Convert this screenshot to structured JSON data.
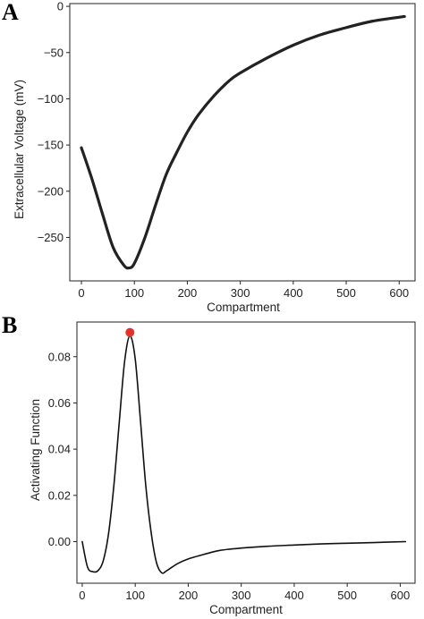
{
  "panels": [
    {
      "label": "A",
      "chart_data": {
        "type": "line",
        "title": "",
        "xlabel": "Compartment",
        "ylabel": "Extracellular Voltage (mV)",
        "xlim": [
          -22,
          630
        ],
        "ylim": [
          -297,
          3
        ],
        "xticks": [
          0,
          100,
          200,
          300,
          400,
          500,
          600
        ],
        "yticks": [
          0,
          -50,
          -100,
          -150,
          -200,
          -250
        ],
        "xtick_labels": [
          "0",
          "100",
          "200",
          "300",
          "400",
          "500",
          "600"
        ],
        "ytick_labels": [
          "0",
          "−50",
          "−100",
          "−150",
          "−200",
          "−250"
        ],
        "grid": false,
        "line_color": "#222222",
        "series": [
          {
            "x": [
              0,
              20,
              40,
              60,
              80,
              90,
              100,
              120,
              140,
              160,
              180,
              200,
              220,
              250,
              280,
              300,
              350,
              400,
              450,
              500,
              550,
              610
            ],
            "values": [
              -153,
              -187,
              -225,
              -261,
              -280,
              -283,
              -278,
              -250,
              -215,
              -182,
              -158,
              -136,
              -118,
              -97,
              -80,
              -72,
              -56,
              -42,
              -31,
              -23,
              -16,
              -11
            ]
          }
        ]
      }
    },
    {
      "label": "B",
      "chart_data": {
        "type": "line",
        "title": "",
        "xlabel": "Compartment",
        "ylabel": "Activating Function",
        "xlim": [
          -10,
          628
        ],
        "ylim": [
          -0.018,
          0.095
        ],
        "xticks": [
          0,
          100,
          200,
          300,
          400,
          500,
          600
        ],
        "yticks": [
          0.0,
          0.02,
          0.04,
          0.06,
          0.08
        ],
        "xtick_labels": [
          "0",
          "100",
          "200",
          "300",
          "400",
          "500",
          "600"
        ],
        "ytick_labels": [
          "0.00",
          "0.02",
          "0.04",
          "0.06",
          "0.08"
        ],
        "grid": false,
        "line_color": "#111111",
        "marker_color": "#e8302a",
        "series": [
          {
            "x": [
              0,
              10,
              20,
              30,
              40,
              50,
              60,
              70,
              80,
              90,
              100,
              110,
              120,
              130,
              140,
              150,
              160,
              180,
              200,
              230,
              260,
              300,
              350,
              400,
              450,
              500,
              550,
              610
            ],
            "values": [
              0.0,
              -0.011,
              -0.013,
              -0.0125,
              -0.008,
              0.004,
              0.025,
              0.052,
              0.078,
              0.089,
              0.079,
              0.052,
              0.024,
              0.004,
              -0.009,
              -0.0135,
              -0.0125,
              -0.0095,
              -0.0075,
              -0.0055,
              -0.0038,
              -0.0028,
              -0.002,
              -0.0015,
              -0.001,
              -0.0007,
              -0.0004,
              0.0
            ]
          }
        ],
        "highlight": {
          "x": 90,
          "y": 0.0905
        }
      }
    }
  ]
}
